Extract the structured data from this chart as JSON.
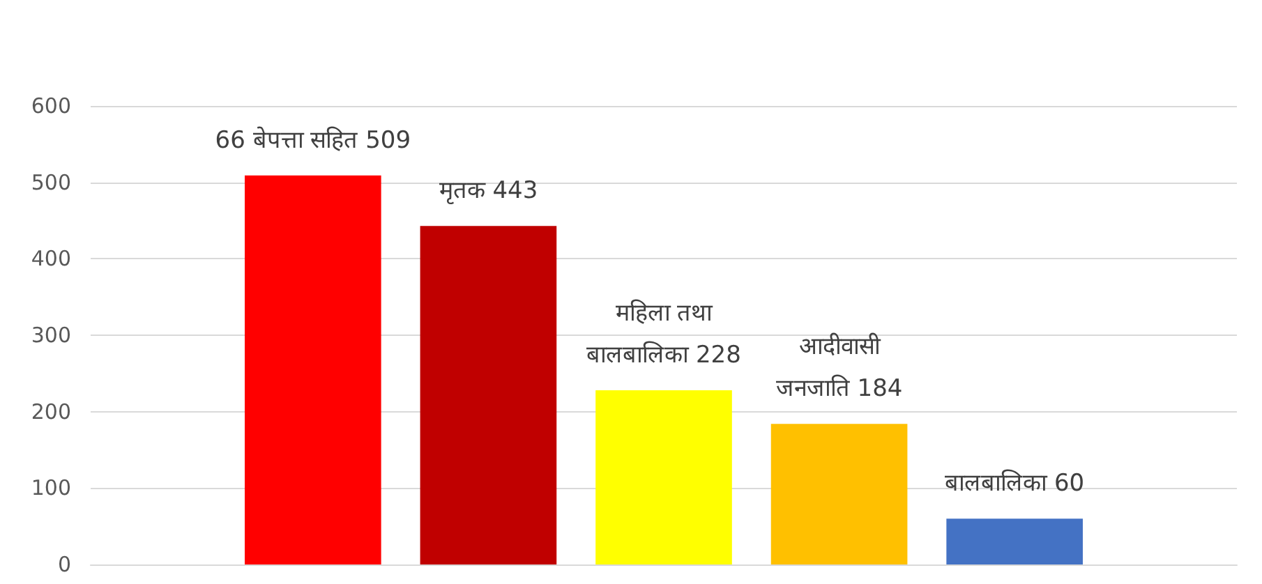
{
  "chart_data": {
    "type": "bar",
    "categories": [
      null
    ],
    "series": [
      {
        "color": "#ff0000",
        "values": [
          509
        ],
        "value_labels": [
          "66 बेपत्ता सहित 509"
        ]
      },
      {
        "color": "#c00000",
        "values": [
          443
        ],
        "value_labels": [
          "मृतक 443"
        ]
      },
      {
        "color": "#ffff00",
        "values": [
          228
        ],
        "value_labels": [
          "महिला तथा\nबालबालिका 228"
        ]
      },
      {
        "color": "#ffc000",
        "values": [
          184
        ],
        "value_labels": [
          "आदीवासी\nजनजाति 184"
        ]
      },
      {
        "color": "#4472c4",
        "values": [
          60
        ],
        "value_labels": [
          "बालबालिका 60"
        ]
      }
    ],
    "ylim": [
      0,
      600
    ],
    "yticks": [
      0,
      100,
      200,
      300,
      400,
      500,
      600
    ],
    "grid": "y"
  }
}
